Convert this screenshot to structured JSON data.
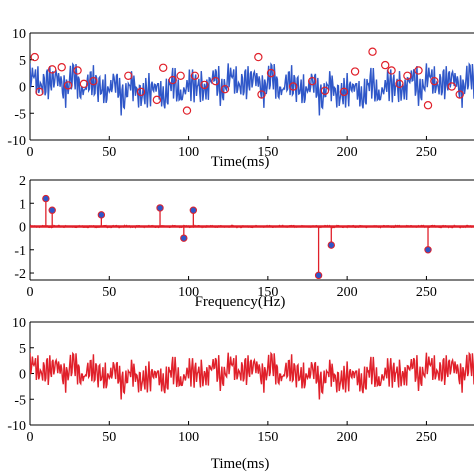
{
  "chart_data": [
    {
      "type": "line",
      "xlabel": "Time(ms)",
      "ylabel": "",
      "xlim": [
        0,
        280
      ],
      "ylim": [
        -10,
        10
      ],
      "xticks": [
        0,
        50,
        100,
        150,
        200,
        250
      ],
      "yticks": [
        10,
        5,
        0,
        -5,
        -10
      ],
      "line_color": "#2f57c8",
      "marker_color": "#e0202a",
      "samples_per_ms": 2,
      "series": [
        {
          "components": [
            {
              "freq_hz": 10,
              "amp": 1.2,
              "phase": 0.3
            },
            {
              "freq_hz": 14,
              "amp": 0.7,
              "phase": 1.1
            },
            {
              "freq_hz": 45,
              "amp": 0.5,
              "phase": 2.0
            },
            {
              "freq_hz": 82,
              "amp": 0.8,
              "phase": 0.7
            },
            {
              "freq_hz": 97,
              "amp": 0.5,
              "phase": 2.6
            },
            {
              "freq_hz": 103,
              "amp": 0.7,
              "phase": 1.5
            },
            {
              "freq_hz": 182,
              "amp": 2.1,
              "phase": 0.2
            },
            {
              "freq_hz": 190,
              "amp": 0.8,
              "phase": 2.2
            },
            {
              "freq_hz": 251,
              "amp": 1.0,
              "phase": 1.0
            }
          ]
        }
      ],
      "markers": [
        {
          "x": 3,
          "y": 5.5
        },
        {
          "x": 6,
          "y": -1.0
        },
        {
          "x": 14,
          "y": 3.2
        },
        {
          "x": 20,
          "y": 3.6
        },
        {
          "x": 24,
          "y": 0.2
        },
        {
          "x": 30,
          "y": 3.0
        },
        {
          "x": 34,
          "y": 0.5
        },
        {
          "x": 40,
          "y": 1.0
        },
        {
          "x": 62,
          "y": 2.0
        },
        {
          "x": 70,
          "y": -1.0
        },
        {
          "x": 80,
          "y": -2.5
        },
        {
          "x": 84,
          "y": 3.5
        },
        {
          "x": 90,
          "y": 1.2
        },
        {
          "x": 95,
          "y": 2.0
        },
        {
          "x": 99,
          "y": -4.5
        },
        {
          "x": 104,
          "y": 2.0
        },
        {
          "x": 110,
          "y": 0.3
        },
        {
          "x": 117,
          "y": 1.0
        },
        {
          "x": 123,
          "y": -0.5
        },
        {
          "x": 144,
          "y": 5.5
        },
        {
          "x": 146,
          "y": -1.5
        },
        {
          "x": 152,
          "y": 2.5
        },
        {
          "x": 166,
          "y": 0.0
        },
        {
          "x": 178,
          "y": 1.0
        },
        {
          "x": 186,
          "y": -0.8
        },
        {
          "x": 198,
          "y": -1.0
        },
        {
          "x": 205,
          "y": 2.8
        },
        {
          "x": 216,
          "y": 6.5
        },
        {
          "x": 224,
          "y": 4.0
        },
        {
          "x": 228,
          "y": 3.0
        },
        {
          "x": 233,
          "y": 0.5
        },
        {
          "x": 238,
          "y": 2.0
        },
        {
          "x": 245,
          "y": 3.0
        },
        {
          "x": 251,
          "y": -3.5
        },
        {
          "x": 255,
          "y": 1.0
        },
        {
          "x": 266,
          "y": 0.0
        },
        {
          "x": 271,
          "y": -1.5
        }
      ]
    },
    {
      "type": "stem",
      "xlabel": "Frequency(Hz)",
      "ylabel": "",
      "xlim": [
        0,
        280
      ],
      "ylim": [
        -2.3,
        2
      ],
      "xticks": [
        0,
        50,
        100,
        150,
        200,
        250
      ],
      "yticks": [
        2,
        1,
        0,
        -1,
        -2
      ],
      "line_color": "#e0202a",
      "marker_color": "#2f57c8",
      "series": [
        {
          "x": [
            10,
            14,
            45,
            82,
            97,
            103,
            182,
            190,
            251
          ],
          "values": [
            1.2,
            0.7,
            0.5,
            0.8,
            -0.5,
            0.7,
            -2.1,
            -0.8,
            -1.0
          ]
        }
      ]
    },
    {
      "type": "line",
      "xlabel": "Time(ms)",
      "ylabel": "",
      "xlim": [
        0,
        280
      ],
      "ylim": [
        -10,
        10
      ],
      "xticks": [
        0,
        50,
        100,
        150,
        200,
        250
      ],
      "yticks": [
        10,
        5,
        0,
        -5,
        -10
      ],
      "line_color": "#e0202a",
      "samples_per_ms": 2,
      "series": [
        {
          "components": [
            {
              "freq_hz": 10,
              "amp": 1.2,
              "phase": 0.3
            },
            {
              "freq_hz": 14,
              "amp": 0.7,
              "phase": 1.1
            },
            {
              "freq_hz": 45,
              "amp": 0.5,
              "phase": 2.0
            },
            {
              "freq_hz": 82,
              "amp": 0.8,
              "phase": 0.7
            },
            {
              "freq_hz": 97,
              "amp": 0.5,
              "phase": 2.6
            },
            {
              "freq_hz": 103,
              "amp": 0.7,
              "phase": 1.5
            },
            {
              "freq_hz": 182,
              "amp": 2.1,
              "phase": 0.2
            },
            {
              "freq_hz": 190,
              "amp": 0.8,
              "phase": 2.2
            },
            {
              "freq_hz": 251,
              "amp": 1.0,
              "phase": 1.0
            }
          ]
        }
      ]
    }
  ]
}
